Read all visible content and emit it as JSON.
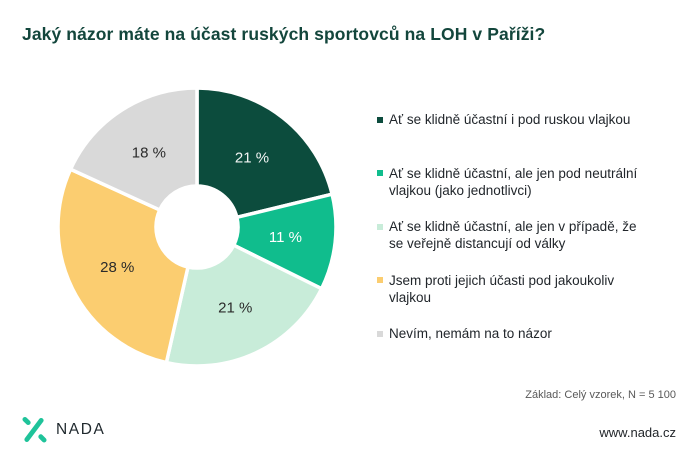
{
  "title": "Jaký názor máte na účast ruských sportovců na LOH v Paříži?",
  "chart_data": {
    "type": "pie",
    "donut": true,
    "value_suffix": " %",
    "legend_position": "right",
    "slices": [
      {
        "label": "Ať se klidně účastní i pod ruskou vlajkou",
        "value": 21,
        "color": "#0c4c3d",
        "label_color": "#f2f5f4"
      },
      {
        "label": "Ať se klidně účastní, ale jen pod neutrální vlajkou (jako jednotlivci)",
        "value": 11,
        "color": "#10bd8d",
        "label_color": "#ffffff"
      },
      {
        "label": "Ať se klidně účastní, ale jen v případě, že se veřejně distancují od války",
        "value": 21,
        "color": "#c8ecd9",
        "label_color": "#2b2b2b"
      },
      {
        "label": "Jsem proti jejich účasti pod jakoukoliv vlajkou",
        "value": 28,
        "color": "#fbcd70",
        "label_color": "#2b2b2b"
      },
      {
        "label": "Nevím, nemám na to názor",
        "value": 18,
        "color": "#d9d9d9",
        "label_color": "#2b2b2b"
      }
    ]
  },
  "base_note": "Základ: Celý vzorek, N = 5 100",
  "footer": {
    "brand": "NADA",
    "website": "www.nada.cz",
    "brand_color": "#1fc39a"
  }
}
